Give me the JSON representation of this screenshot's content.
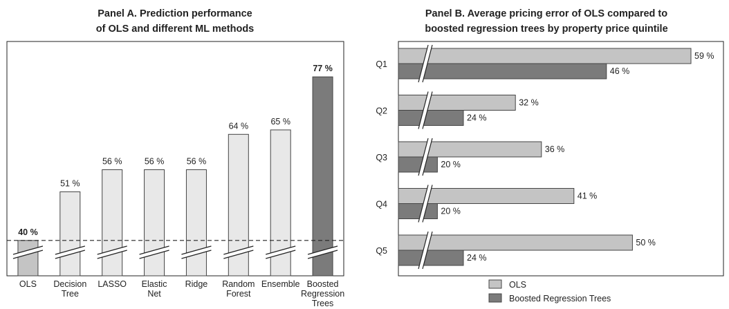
{
  "chart_data": [
    {
      "type": "bar",
      "title": "Panel A. Prediction performance of OLS and different ML methods",
      "title_lines": [
        "Panel A. Prediction performance",
        "of OLS and different ML methods"
      ],
      "categories": [
        "OLS",
        "Decision Tree",
        "LASSO",
        "Elastic Net",
        "Ridge",
        "Random Forest",
        "Ensemble",
        "Boosted Regression Trees"
      ],
      "category_lines": [
        [
          "OLS"
        ],
        [
          "Decision",
          "Tree"
        ],
        [
          "LASSO"
        ],
        [
          "Elastic",
          "Net"
        ],
        [
          "Ridge"
        ],
        [
          "Random",
          "Forest"
        ],
        [
          "Ensemble"
        ],
        [
          "Boosted",
          "Regression",
          "Trees"
        ]
      ],
      "values": [
        40,
        51,
        56,
        56,
        56,
        64,
        65,
        77
      ],
      "value_labels": [
        "40 %",
        "51 %",
        "56 %",
        "56 %",
        "56 %",
        "64 %",
        "65 %",
        "77 %"
      ],
      "bold_labels": [
        true,
        false,
        false,
        false,
        false,
        false,
        false,
        true
      ],
      "reference_line": 40,
      "axis_break": true,
      "ylim": [
        32,
        85
      ],
      "colors": [
        "#c4c4c4",
        "#e8e8e8",
        "#e8e8e8",
        "#e8e8e8",
        "#e8e8e8",
        "#e8e8e8",
        "#e8e8e8",
        "#7b7b7b"
      ],
      "xlabel": "",
      "ylabel": "",
      "grid": false
    },
    {
      "type": "bar",
      "orientation": "horizontal",
      "title": "Panel B. Average pricing error of OLS compared to boosted regression trees by property price quintile",
      "title_lines": [
        "Panel B. Average pricing error of OLS compared to",
        "boosted regression trees by property price quintile"
      ],
      "categories": [
        "Q1",
        "Q2",
        "Q3",
        "Q4",
        "Q5"
      ],
      "series": [
        {
          "name": "OLS",
          "values": [
            59,
            32,
            36,
            41,
            50
          ],
          "labels": [
            "59 %",
            "32 %",
            "36 %",
            "41 %",
            "50 %"
          ],
          "color": "#c4c4c4"
        },
        {
          "name": "Boosted Regression Trees",
          "values": [
            46,
            24,
            20,
            20,
            24
          ],
          "labels": [
            "46 %",
            "24 %",
            "20 %",
            "20 %",
            "24 %"
          ],
          "color": "#7b7b7b"
        }
      ],
      "axis_break": true,
      "xlim": [
        14,
        64
      ],
      "legend": "bottom",
      "xlabel": "",
      "ylabel": "",
      "grid": false
    }
  ]
}
